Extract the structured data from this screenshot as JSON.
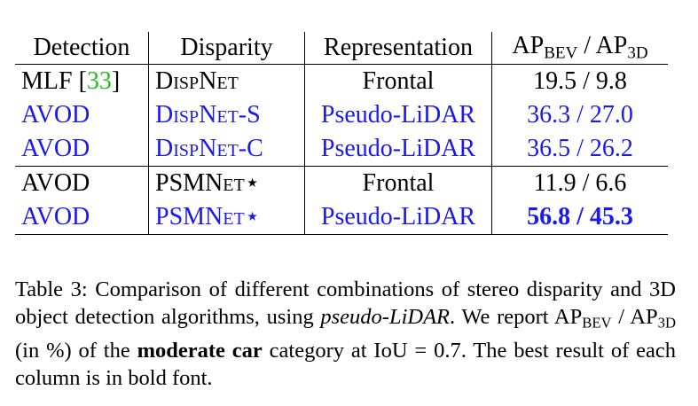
{
  "table": {
    "header": [
      [
        {
          "text": "Detection"
        }
      ],
      [
        {
          "text": "Disparity"
        }
      ],
      [
        {
          "text": "Representation"
        }
      ],
      [
        {
          "text": "AP"
        },
        {
          "text": "BEV",
          "style": "sub"
        },
        {
          "text": " / AP"
        },
        {
          "text": "3D",
          "style": "sub"
        }
      ]
    ],
    "rows": [
      {
        "color": "#000000",
        "cells": [
          [
            {
              "text": "MLF ["
            },
            {
              "text": "33",
              "color": "#22c322"
            },
            {
              "text": "]"
            }
          ],
          [
            {
              "text": "DispNet",
              "style": "smallcaps"
            }
          ],
          [
            {
              "text": "Frontal"
            }
          ],
          [
            {
              "text": "19.5 / 9.8"
            }
          ]
        ]
      },
      {
        "color": "#1a1aee",
        "cells": [
          [
            {
              "text": "AVOD"
            }
          ],
          [
            {
              "text": "DispNet-S",
              "style": "smallcaps"
            }
          ],
          [
            {
              "text": "Pseudo-LiDAR"
            }
          ],
          [
            {
              "text": "36.3 / 27.0"
            }
          ]
        ]
      },
      {
        "color": "#1a1aee",
        "cells": [
          [
            {
              "text": "AVOD"
            }
          ],
          [
            {
              "text": "DispNet-C",
              "style": "smallcaps"
            }
          ],
          [
            {
              "text": "Pseudo-LiDAR"
            }
          ],
          [
            {
              "text": "36.5 / 26.2"
            }
          ]
        ]
      },
      {
        "color": "#000000",
        "cells": [
          [
            {
              "text": "AVOD"
            }
          ],
          [
            {
              "text": "PSMNet",
              "style": "smallcaps"
            },
            {
              "text": "⋆"
            }
          ],
          [
            {
              "text": "Frontal"
            }
          ],
          [
            {
              "text": "11.9 / 6.6"
            }
          ]
        ]
      },
      {
        "color": "#1a1aee",
        "cells": [
          [
            {
              "text": "AVOD"
            }
          ],
          [
            {
              "text": "PSMNet",
              "style": "smallcaps"
            },
            {
              "text": "⋆"
            }
          ],
          [
            {
              "text": "Pseudo-LiDAR"
            }
          ],
          [
            {
              "text": "56.8 / 45.3",
              "style": "bold"
            }
          ]
        ]
      }
    ]
  },
  "caption": [
    {
      "text": "Table 3: Comparison of different combinations of stereo disparity and 3D object detection algorithms, using "
    },
    {
      "text": "pseudo-LiDAR",
      "style": "italic"
    },
    {
      "text": ". We report AP"
    },
    {
      "text": "BEV",
      "style": "sub"
    },
    {
      "text": " / AP"
    },
    {
      "text": "3D",
      "style": "sub"
    },
    {
      "text": " (in %) of the "
    },
    {
      "text": "moderate car",
      "style": "bold"
    },
    {
      "text": " category at IoU = 0.7. The best result of each column is in bold font."
    }
  ]
}
